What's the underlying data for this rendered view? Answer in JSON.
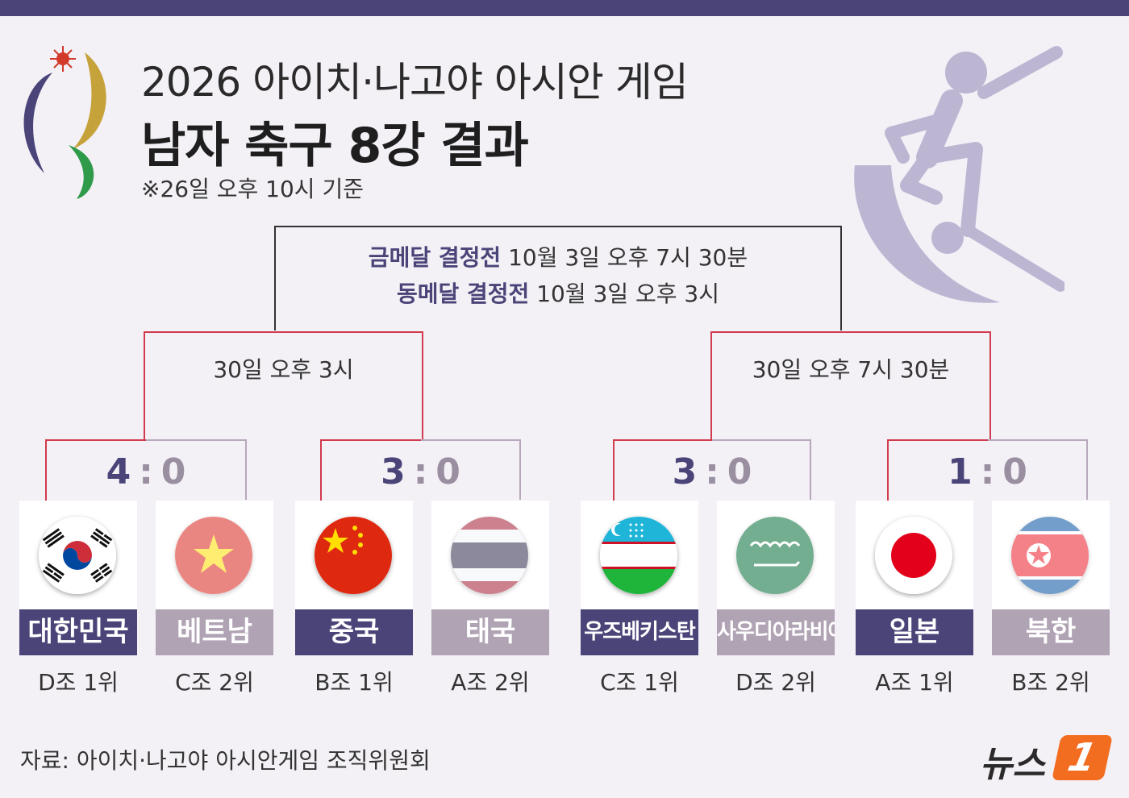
{
  "title": {
    "line1": "2026 아이치·나고야 아시안 게임",
    "line2": "남자 축구 8강 결과",
    "note": "※26일 오후 10시 기준"
  },
  "final": {
    "gold_label": "금메달 결정전",
    "gold_time": " 10월 3일 오후 7시 30분",
    "bronze_label": "동메달 결정전",
    "bronze_time": " 10월 3일 오후 3시"
  },
  "semifinals": [
    {
      "time": "30일 오후 3시"
    },
    {
      "time": "30일 오후 7시 30분"
    }
  ],
  "quarterfinals": [
    {
      "score_winner": "4",
      "separator": ":",
      "score_loser": "0"
    },
    {
      "score_winner": "3",
      "separator": ":",
      "score_loser": "0"
    },
    {
      "score_winner": "3",
      "separator": ":",
      "score_loser": "0"
    },
    {
      "score_winner": "1",
      "separator": ":",
      "score_loser": "0"
    }
  ],
  "teams": [
    {
      "name": "대한민국",
      "rank": "D조 1위",
      "flag": "korea-flag-icon",
      "result": "win"
    },
    {
      "name": "베트남",
      "rank": "C조 2위",
      "flag": "vietnam-flag-icon",
      "result": "lose"
    },
    {
      "name": "중국",
      "rank": "B조 1위",
      "flag": "china-flag-icon",
      "result": "win"
    },
    {
      "name": "태국",
      "rank": "A조 2위",
      "flag": "thailand-flag-icon",
      "result": "lose"
    },
    {
      "name": "우즈베키스탄",
      "rank": "C조 1위",
      "flag": "uzbekistan-flag-icon",
      "result": "win"
    },
    {
      "name": "사우디아라비아",
      "rank": "D조 2위",
      "flag": "saudi-arabia-flag-icon",
      "result": "lose"
    },
    {
      "name": "일본",
      "rank": "A조 1위",
      "flag": "japan-flag-icon",
      "result": "win"
    },
    {
      "name": "북한",
      "rank": "B조 2위",
      "flag": "north-korea-flag-icon",
      "result": "lose"
    }
  ],
  "source": "자료: 아이치·나고야 아시안게임 조직위원회",
  "brand": {
    "text": "뉴스",
    "badge": "1"
  },
  "colors": {
    "accent": "#4a4478",
    "winner_bar": "#d23a4e",
    "loser": "#b0a3b4",
    "brand": "#f36d21"
  }
}
